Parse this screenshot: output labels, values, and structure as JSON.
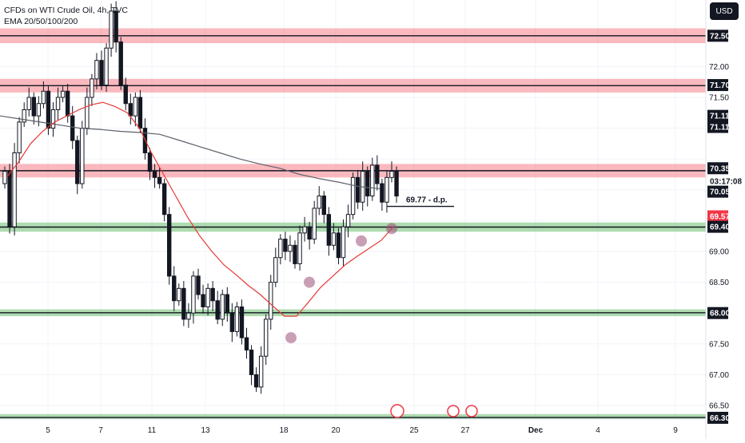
{
  "header": {
    "title": "CFDs on WTI Crude Oil, 4h, TVC",
    "indicator": "EMA 20/50/100/200",
    "currency": "USD"
  },
  "chart_data": {
    "type": "candlestick",
    "ylim": [
      66.2,
      73.2
    ],
    "y_ticks": [
      66.5,
      67.0,
      67.5,
      68.0,
      68.5,
      69.0,
      69.5,
      70.0,
      70.5,
      71.0,
      71.5,
      72.0,
      72.5
    ],
    "y_tick_labels": [
      "66.50",
      "67.00",
      "67.50",
      "68.00",
      "68.50",
      "69.00",
      "",
      "",
      "",
      "71.00",
      "71.50",
      "72.00",
      "72.50"
    ],
    "x_tick_labels": [
      "5",
      "7",
      "11",
      "13",
      "18",
      "20",
      "25",
      "27",
      "Dec",
      "4",
      "9"
    ],
    "price_tags": [
      {
        "label": "72.50",
        "value": 72.5,
        "style": "dark"
      },
      {
        "label": "71.70",
        "value": 71.7,
        "style": "dark"
      },
      {
        "label": "71.11",
        "value": 71.2,
        "style": "dark"
      },
      {
        "label": "71.11",
        "value": 71.02,
        "style": "dark"
      },
      {
        "label": "70.35",
        "value": 70.35,
        "style": "dark"
      },
      {
        "label": "03:17:08",
        "value": 70.14,
        "style": "light"
      },
      {
        "label": "70.05",
        "value": 69.97,
        "style": "dark"
      },
      {
        "label": "69.57",
        "value": 69.57,
        "style": "red"
      },
      {
        "label": "69.40",
        "value": 69.4,
        "style": "dark"
      },
      {
        "label": "68.00",
        "value": 68.0,
        "style": "dark"
      },
      {
        "label": "66.30",
        "value": 66.3,
        "style": "dark"
      }
    ],
    "zones": [
      {
        "kind": "resistance",
        "from": 72.38,
        "to": 72.62
      },
      {
        "kind": "resistance",
        "from": 71.58,
        "to": 71.8
      },
      {
        "kind": "resistance",
        "from": 70.2,
        "to": 70.42
      },
      {
        "kind": "support",
        "from": 69.32,
        "to": 69.47
      },
      {
        "kind": "support",
        "from": 67.95,
        "to": 68.06
      },
      {
        "kind": "support",
        "from": 66.25,
        "to": 66.36
      }
    ],
    "annotation": {
      "text": "69.77 - d.p.",
      "value": 69.77
    },
    "ema_short": [
      70.2,
      70.45,
      70.75,
      70.95,
      71.1,
      71.2,
      71.3,
      71.38,
      71.42,
      71.35,
      71.25,
      71.0,
      70.6,
      70.25,
      69.9,
      69.55,
      69.25,
      69.0,
      68.78,
      68.62,
      68.45,
      68.3,
      68.12,
      67.95,
      67.95,
      68.18,
      68.42,
      68.6,
      68.78,
      68.92,
      69.05,
      69.18,
      69.4
    ],
    "ema_long": [
      71.2,
      71.15,
      71.1,
      71.05,
      71.0,
      70.98,
      70.95,
      70.93,
      70.9,
      70.8,
      70.7,
      70.6,
      70.5,
      70.42,
      70.35,
      70.25,
      70.18,
      70.12,
      70.05,
      70.02
    ],
    "markers": [
      {
        "kind": "circle",
        "value": 68.5
      },
      {
        "kind": "circle",
        "value": 67.6
      },
      {
        "kind": "circle",
        "value": 69.17
      },
      {
        "kind": "circle",
        "value": 69.37
      }
    ],
    "grid": true
  }
}
